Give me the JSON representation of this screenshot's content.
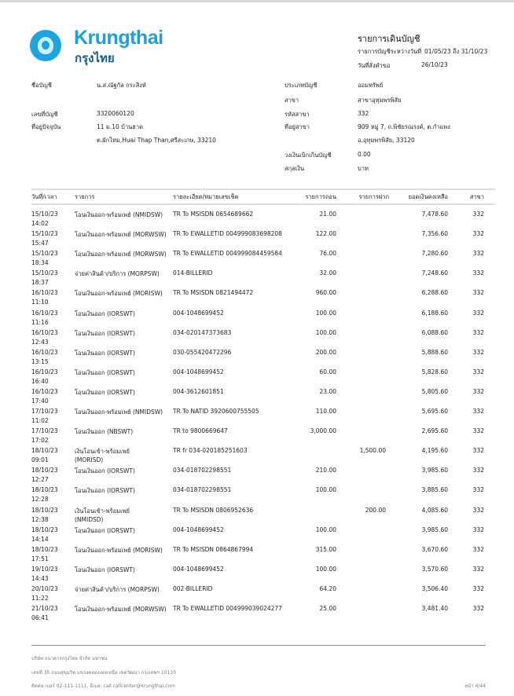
{
  "brand": {
    "name_en": "Krungthai",
    "name_th": "กรุงไทย",
    "color": "#1aa0dc"
  },
  "header": {
    "title": "รายการเดินบัญชี",
    "period_label": "รายการบัญชีระหว่างวันที่",
    "period_value": "01/05/23 ถึง 31/10/23",
    "request_label": "วันที่สั่งคำขอ",
    "request_value": "26/10/23"
  },
  "account": {
    "name_label": "ชื่อบัญชี",
    "name": "น.ส.ณัฐกัล กระสิงห์",
    "number_label": "เลขที่บัญชี",
    "number": "3320060120",
    "address_label": "ที่อยู่ปัจจุบัน",
    "address_1": "11 ม.10 บ้านฮาด",
    "address_2": "ต.ผักไหม,Huai Thap Than,ศรีสะเกษ, 33210",
    "type_label": "ประเภทบัญชี",
    "type": "ออมทรัพย์",
    "branch_label": "สาขา",
    "branch": "สาขาอุทุมพรพิสัย",
    "branch_code_label": "รหัสสาขา",
    "branch_code": "332",
    "branch_address_label": "ที่อยู่สาขา",
    "branch_address_1": "909 หมู่ 7, ถ.พิชัยรณรงค์, ต.กำแพง",
    "branch_address_2": "อ.อุทุมพรพิสัย,  33120",
    "overdraft_label": "วงเงินเบิกเกินบัญชี",
    "overdraft": "0.00",
    "currency_label": "สกุลเงิน",
    "currency": "บาท"
  },
  "table": {
    "columns": [
      "วันที่/เวลา",
      "รายการ",
      "รายละเอียด/หมายเลขเช็ค",
      "รายการถอน",
      "รายการฝาก",
      "ยอดเงินคงเหลือ",
      "สาขา"
    ],
    "rows": [
      {
        "date": "15/10/23",
        "time": "14:02",
        "desc": "โอนเงินออก-พร้อมเพย์ (NMIDSW)",
        "desc2": "",
        "detail": "TR To MSISDN 0654689662",
        "withdraw": "21.00",
        "deposit": "",
        "balance": "7,478.60",
        "branch": "332"
      },
      {
        "date": "15/10/23",
        "time": "15:47",
        "desc": "โอนเงินออก-พร้อมเพย์ (MORWSW)",
        "desc2": "",
        "detail": "TR To EWALLETID 004999083698208",
        "withdraw": "122.00",
        "deposit": "",
        "balance": "7,356.60",
        "branch": "332"
      },
      {
        "date": "15/10/23",
        "time": "18:34",
        "desc": "โอนเงินออก-พร้อมเพย์ (MORWSW)",
        "desc2": "",
        "detail": "TR To EWALLETID 004999084459584",
        "withdraw": "76.00",
        "deposit": "",
        "balance": "7,280.60",
        "branch": "332"
      },
      {
        "date": "15/10/23",
        "time": "18:37",
        "desc": "จ่ายค่าสินค้า/บริการ (MORPSW)",
        "desc2": "",
        "detail": "014-BILLERID",
        "withdraw": "32.00",
        "deposit": "",
        "balance": "7,248.60",
        "branch": "332"
      },
      {
        "date": "16/10/23",
        "time": "11:10",
        "desc": "โอนเงินออก-พร้อมเพย์ (MORISW)",
        "desc2": "",
        "detail": "TR To MSISDN 0821494472",
        "withdraw": "960.00",
        "deposit": "",
        "balance": "6,288.60",
        "branch": "332"
      },
      {
        "date": "16/10/23",
        "time": "11:16",
        "desc": "โอนเงินออก (IORSWT)",
        "desc2": "",
        "detail": "004-1048699452",
        "withdraw": "100.00",
        "deposit": "",
        "balance": "6,188.60",
        "branch": "332"
      },
      {
        "date": "16/10/23",
        "time": "12:43",
        "desc": "โอนเงินออก (IORSWT)",
        "desc2": "",
        "detail": "034-020147373683",
        "withdraw": "100.00",
        "deposit": "",
        "balance": "6,088.60",
        "branch": "332"
      },
      {
        "date": "16/10/23",
        "time": "13:15",
        "desc": "โอนเงินออก (IORSWT)",
        "desc2": "",
        "detail": "030-055420472296",
        "withdraw": "200.00",
        "deposit": "",
        "balance": "5,888.60",
        "branch": "332"
      },
      {
        "date": "16/10/23",
        "time": "16:40",
        "desc": "โอนเงินออก (IORSWT)",
        "desc2": "",
        "detail": "004-1048699452",
        "withdraw": "60.00",
        "deposit": "",
        "balance": "5,828.60",
        "branch": "332"
      },
      {
        "date": "16/10/23",
        "time": "17:40",
        "desc": "โอนเงินออก (IORSWT)",
        "desc2": "",
        "detail": "004-3612601851",
        "withdraw": "23.00",
        "deposit": "",
        "balance": "5,805.60",
        "branch": "332"
      },
      {
        "date": "17/10/23",
        "time": "11:02",
        "desc": "โอนเงินออก-พร้อมเพย์ (NMIDSW)",
        "desc2": "",
        "detail": "TR To NATID 3920600755505",
        "withdraw": "110.00",
        "deposit": "",
        "balance": "5,695.60",
        "branch": "332"
      },
      {
        "date": "17/10/23",
        "time": "17:02",
        "desc": "โอนเงินออก (NBSWT)",
        "desc2": "",
        "detail": "TR to 9800669647",
        "withdraw": "3,000.00",
        "deposit": "",
        "balance": "2,695.60",
        "branch": "332"
      },
      {
        "date": "18/10/23",
        "time": "09:01",
        "desc": "เงินโอนเข้า-พร้อมเพย์",
        "desc2": "(MORISD)",
        "detail": "TR fr 034-020185251603",
        "withdraw": "",
        "deposit": "1,500.00",
        "balance": "4,195.60",
        "branch": "332"
      },
      {
        "date": "18/10/23",
        "time": "12:27",
        "desc": "โอนเงินออก (IORSWT)",
        "desc2": "",
        "detail": "034-018702298551",
        "withdraw": "210.00",
        "deposit": "",
        "balance": "3,985.60",
        "branch": "332"
      },
      {
        "date": "18/10/23",
        "time": "12:28",
        "desc": "โอนเงินออก (IORSWT)",
        "desc2": "",
        "detail": "034-018702298551",
        "withdraw": "100.00",
        "deposit": "",
        "balance": "3,885.60",
        "branch": "332"
      },
      {
        "date": "18/10/23",
        "time": "12:38",
        "desc": "เงินโอนเข้า-พร้อมเพย์",
        "desc2": "(NMIDSD)",
        "detail": "TR To MSISDN 0806952636",
        "withdraw": "",
        "deposit": "200.00",
        "balance": "4,085.60",
        "branch": "332"
      },
      {
        "date": "18/10/23",
        "time": "14:14",
        "desc": "โอนเงินออก (IORSWT)",
        "desc2": "",
        "detail": "004-1048699452",
        "withdraw": "100.00",
        "deposit": "",
        "balance": "3,985.60",
        "branch": "332"
      },
      {
        "date": "18/10/23",
        "time": "17:51",
        "desc": "โอนเงินออก-พร้อมเพย์ (MORISW)",
        "desc2": "",
        "detail": "TR To MSISDN 0864867994",
        "withdraw": "315.00",
        "deposit": "",
        "balance": "3,670.60",
        "branch": "332"
      },
      {
        "date": "19/10/23",
        "time": "14:43",
        "desc": "โอนเงินออก (IORSWT)",
        "desc2": "",
        "detail": "004-1048699452",
        "withdraw": "100.00",
        "deposit": "",
        "balance": "3,570.60",
        "branch": "332"
      },
      {
        "date": "20/10/23",
        "time": "11:22",
        "desc": "จ่ายค่าสินค้า/บริการ (MORPSW)",
        "desc2": "",
        "detail": "002-BILLERID",
        "withdraw": "64.20",
        "deposit": "",
        "balance": "3,506.40",
        "branch": "332"
      },
      {
        "date": "21/10/23",
        "time": "06:41",
        "desc": "โอนเงินออก-พร้อมเพย์ (MORWSW)",
        "desc2": "",
        "detail": "TR To EWALLETID 004999039024277",
        "withdraw": "25.00",
        "deposit": "",
        "balance": "3,481.40",
        "branch": "332"
      }
    ]
  },
  "footer": {
    "company": "บริษัท ธนาคารกรุงไทย จำกัด มหาชน",
    "address": "เลขที่ 35 ถนนสุขุมวิท แขวงคลองเตยเหนือ เขตวัฒนา กรุงเทพฯ 10110",
    "contact": "ติดต่อ เบอร์ 02-111-1111, อีเมล: call.callcenter@krungthai.com",
    "page": "หน้า 4/44"
  }
}
